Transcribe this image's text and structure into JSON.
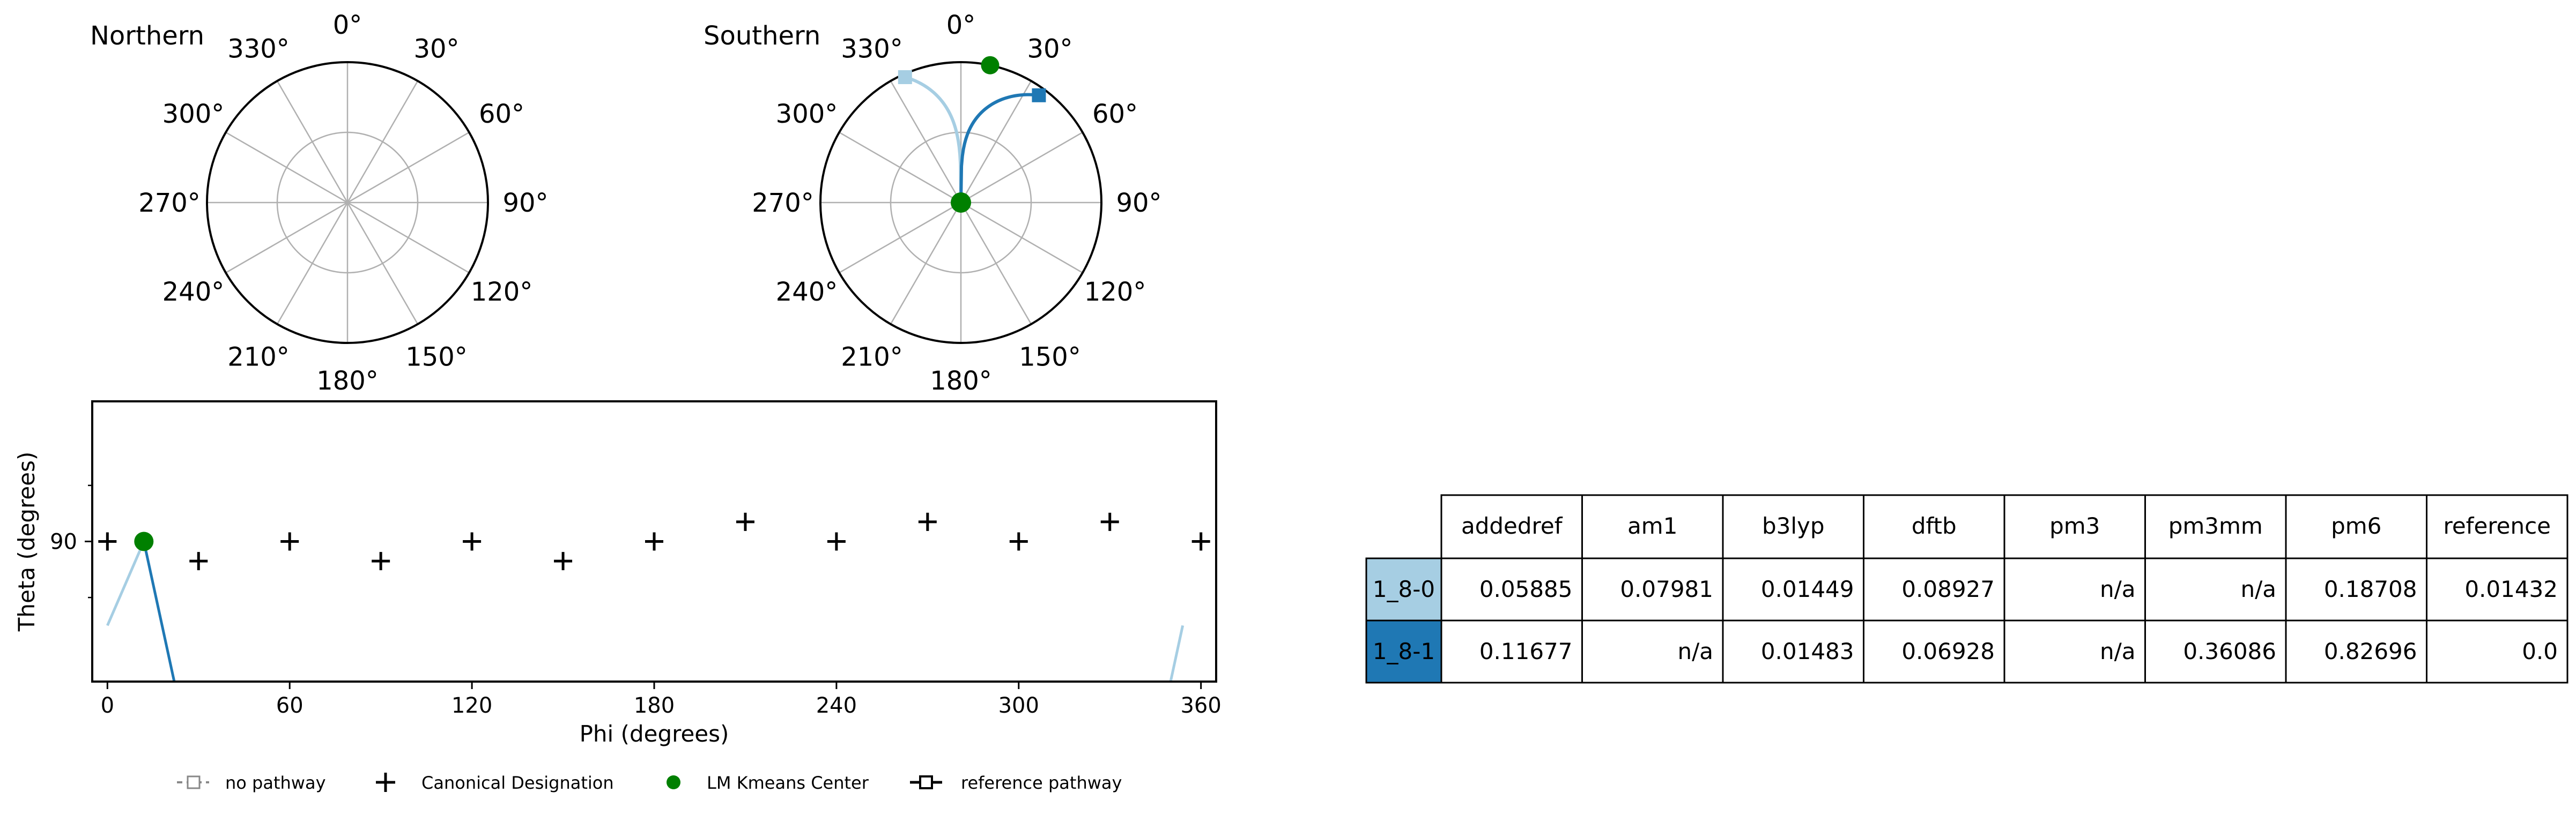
{
  "polar_tick_labels": [
    "0°",
    "30°",
    "60°",
    "90°",
    "120°",
    "150°",
    "180°",
    "210°",
    "240°",
    "270°",
    "300°",
    "330°"
  ],
  "colors": {
    "light_blue": "#a6cee3",
    "dark_blue": "#1f78b4",
    "green": "#008000",
    "grid": "#b0b0b0"
  },
  "chart_data": [
    {
      "type": "polar",
      "title": "Northern",
      "series": []
    },
    {
      "type": "polar",
      "title": "Southern",
      "center_point": {
        "phi": 0,
        "theta": 180
      },
      "series": [
        {
          "color": "#a6cee3",
          "path": [
            [
              0,
              180
            ],
            [
              336,
              92
            ]
          ],
          "end_marker": "square"
        },
        {
          "color": "#1f78b4",
          "path": [
            [
              0,
              180
            ],
            [
              36,
              95
            ]
          ],
          "end_marker": "square"
        }
      ],
      "points": [
        {
          "label": "LM Kmeans Center",
          "phi": 12,
          "theta": 90,
          "color": "#008000"
        }
      ]
    },
    {
      "type": "scatter",
      "xlabel": "Phi (degrees)",
      "ylabel": "Theta (degrees)",
      "xlim": [
        -5,
        365
      ],
      "ylim": [
        65,
        115
      ],
      "xticks": [
        0,
        60,
        120,
        180,
        240,
        300,
        360
      ],
      "yticks": [
        90
      ],
      "canonical_designation": [
        [
          0,
          90
        ],
        [
          30,
          86.5
        ],
        [
          60,
          90
        ],
        [
          90,
          86.5
        ],
        [
          120,
          90
        ],
        [
          150,
          86.5
        ],
        [
          180,
          90
        ],
        [
          210,
          93.5
        ],
        [
          240,
          90
        ],
        [
          270,
          93.5
        ],
        [
          300,
          90
        ],
        [
          330,
          93.5
        ],
        [
          360,
          90
        ]
      ],
      "lm_kmeans_center": [
        [
          12,
          90
        ]
      ],
      "pathways": [
        {
          "color": "#a6cee3",
          "segments": [
            [
              [
                0,
                75
              ],
              [
                12,
                90
              ]
            ],
            [
              [
                354,
                75
              ],
              [
                350,
                65
              ]
            ]
          ]
        },
        {
          "color": "#1f78b4",
          "segments": [
            [
              [
                12,
                90
              ],
              [
                22,
                65
              ]
            ]
          ]
        }
      ],
      "legend": {
        "placement": "bottom",
        "entries": [
          "no pathway",
          "Canonical Designation",
          "LM Kmeans Center",
          "reference pathway"
        ]
      }
    },
    {
      "type": "table",
      "columns": [
        "addedref",
        "am1",
        "b3lyp",
        "dftb",
        "pm3",
        "pm3mm",
        "pm6",
        "reference"
      ],
      "rows": [
        {
          "label": "1_8-0",
          "color": "#a6cee3",
          "values": [
            "0.05885",
            "0.07981",
            "0.01449",
            "0.08927",
            "n/a",
            "n/a",
            "0.18708",
            "0.01432"
          ]
        },
        {
          "label": "1_8-1",
          "color": "#1f78b4",
          "values": [
            "0.11677",
            "n/a",
            "0.01483",
            "0.06928",
            "n/a",
            "0.36086",
            "0.82696",
            "0.0"
          ]
        }
      ]
    }
  ]
}
